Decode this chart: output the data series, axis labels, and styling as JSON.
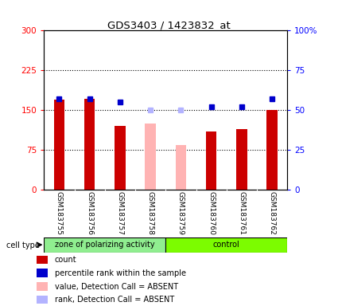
{
  "title": "GDS3403 / 1423832_at",
  "samples": [
    "GSM183755",
    "GSM183756",
    "GSM183757",
    "GSM183758",
    "GSM183759",
    "GSM183760",
    "GSM183761",
    "GSM183762"
  ],
  "count_values": [
    170,
    172,
    120,
    null,
    null,
    110,
    115,
    150
  ],
  "count_absent_values": [
    null,
    null,
    null,
    125,
    85,
    null,
    null,
    null
  ],
  "percentile_values": [
    57,
    57,
    55,
    null,
    null,
    52,
    52,
    57
  ],
  "percentile_absent_values": [
    null,
    null,
    null,
    50,
    50,
    null,
    null,
    null
  ],
  "group_boundary": 4,
  "group1_label": "zone of polarizing activity",
  "group2_label": "control",
  "group1_color": "#90EE90",
  "group2_color": "#7CFC00",
  "ylim_left": [
    0,
    300
  ],
  "ylim_right": [
    0,
    100
  ],
  "yticks_left": [
    0,
    75,
    150,
    225,
    300
  ],
  "yticks_right": [
    0,
    25,
    50,
    75,
    100
  ],
  "yticklabels_left": [
    "0",
    "75",
    "150",
    "225",
    "300"
  ],
  "yticklabels_right": [
    "0",
    "25",
    "50",
    "75",
    "100%"
  ],
  "bar_color_present": "#cc0000",
  "bar_color_absent": "#ffb3b3",
  "dot_color_present": "#0000cc",
  "dot_color_absent": "#b3b3ff",
  "plot_bg_color": "#ffffff",
  "tick_area_color": "#d3d3d3",
  "legend_items": [
    {
      "label": "count",
      "color": "#cc0000"
    },
    {
      "label": "percentile rank within the sample",
      "color": "#0000cc"
    },
    {
      "label": "value, Detection Call = ABSENT",
      "color": "#ffb3b3"
    },
    {
      "label": "rank, Detection Call = ABSENT",
      "color": "#b3b3ff"
    }
  ]
}
